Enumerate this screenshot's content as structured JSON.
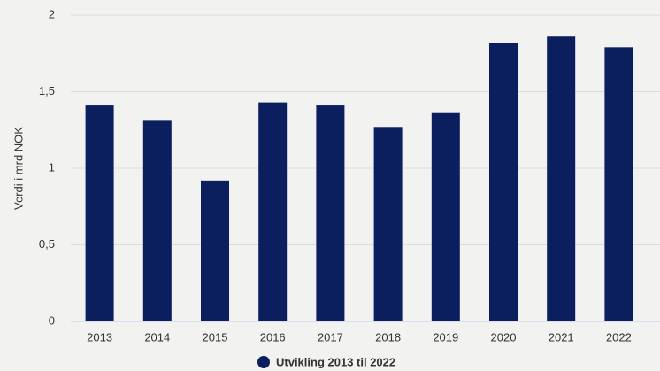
{
  "chart_data": {
    "type": "bar",
    "y_label": "Verdi i mrd NOK",
    "categories": [
      "2013",
      "2014",
      "2015",
      "2016",
      "2017",
      "2018",
      "2019",
      "2020",
      "2021",
      "2022"
    ],
    "series": [
      {
        "name": "Utvikling 2013 til 2022",
        "color": "#0b1f5e",
        "values": [
          1.41,
          1.31,
          0.92,
          1.43,
          1.41,
          1.27,
          1.36,
          1.82,
          1.86,
          1.79
        ]
      }
    ],
    "ylim": [
      0,
      2
    ],
    "yticks": [
      0,
      {
        "value": 0.5,
        "label": "0,5"
      },
      1,
      {
        "value": 1.5,
        "label": "1,5"
      },
      2
    ],
    "grid": true,
    "legend": "bottom"
  }
}
